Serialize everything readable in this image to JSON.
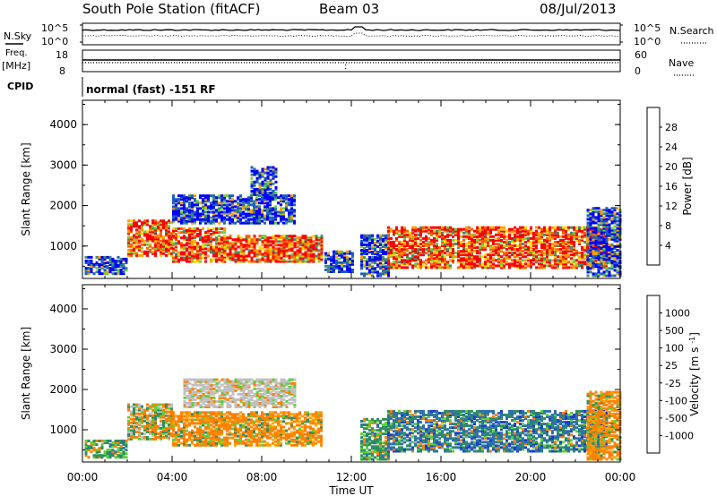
{
  "header": {
    "station": "South Pole Station (fitACF)",
    "beam": "Beam 03",
    "date": "08/Jul/2013"
  },
  "noise_panel": {
    "left_label": "N.Sky",
    "right_label": "N.Search",
    "tick_top": "10^5",
    "tick_bottom": "10^0"
  },
  "freq_panel": {
    "left_label_1": "Freq.",
    "left_label_2": "[MHz]",
    "right_label": "Nave",
    "tick_left_top": "18",
    "tick_left_bottom": "8",
    "tick_right_top": "60",
    "tick_right_bottom": "0"
  },
  "cpid": {
    "label": "CPID",
    "value": "normal (fast) -151 RF"
  },
  "colors": {
    "power": [
      "#0000ff",
      "#1f5fbf",
      "#3f8f6f",
      "#6fcf3f",
      "#ffd700",
      "#ffa000",
      "#ff6000",
      "#ff0000"
    ],
    "velocity": [
      "#1a3fcf",
      "#2f6faf",
      "#2f8f5f",
      "#5fcf3f",
      "#c0c0c0",
      "#ffa000",
      "#ff8000",
      "#ff4000",
      "#ff0000"
    ]
  },
  "chart_data": [
    {
      "type": "heatmap",
      "name": "power",
      "ylabel": "Slant Range [km]",
      "xlabel": "",
      "xlim_hours": [
        0,
        24
      ],
      "ylim": [
        200,
        4600
      ],
      "y_ticks": [
        1000,
        2000,
        3000,
        4000
      ],
      "colorbar": {
        "label": "Power [dB]",
        "ticks": [
          4,
          8,
          12,
          16,
          20,
          24,
          28
        ],
        "range": [
          0,
          32
        ]
      },
      "regions": [
        {
          "t": [
            0.1,
            2.0
          ],
          "r": [
            350,
            800
          ],
          "level": "low"
        },
        {
          "t": [
            2.0,
            4.0
          ],
          "r": [
            800,
            1700
          ],
          "level": "high"
        },
        {
          "t": [
            4.0,
            6.3
          ],
          "r": [
            650,
            1500
          ],
          "level": "high"
        },
        {
          "t": [
            6.3,
            10.7
          ],
          "r": [
            650,
            1300
          ],
          "level": "high"
        },
        {
          "t": [
            4.0,
            9.5
          ],
          "r": [
            1600,
            2300
          ],
          "level": "low"
        },
        {
          "t": [
            7.5,
            8.6
          ],
          "r": [
            2300,
            3000
          ],
          "level": "low"
        },
        {
          "t": [
            10.8,
            12.0
          ],
          "r": [
            400,
            900
          ],
          "level": "low"
        },
        {
          "t": [
            12.4,
            13.6
          ],
          "r": [
            300,
            1300
          ],
          "level": "low"
        },
        {
          "t": [
            13.6,
            23.4
          ],
          "r": [
            500,
            1500
          ],
          "level": "high"
        },
        {
          "t": [
            22.5,
            24.0
          ],
          "r": [
            300,
            2000
          ],
          "level": "low"
        }
      ]
    },
    {
      "type": "heatmap",
      "name": "velocity",
      "ylabel": "Slant Range [km]",
      "xlabel": "Time UT",
      "xlim_hours": [
        0,
        24
      ],
      "ylim": [
        200,
        4600
      ],
      "y_ticks": [
        1000,
        2000,
        3000,
        4000
      ],
      "x_tick_labels": [
        "00:00",
        "04:00",
        "08:00",
        "12:00",
        "16:00",
        "20:00",
        "00:00"
      ],
      "colorbar": {
        "label": "Velocity [m s",
        "label_sup": "-1",
        "label_end": "]",
        "ticks": [
          "1000",
          "500",
          "100",
          "25",
          "-25",
          "-100",
          "-500",
          "-1000"
        ]
      },
      "regions": [
        {
          "t": [
            0.1,
            2.0
          ],
          "r": [
            350,
            800
          ],
          "v": "pos_small"
        },
        {
          "t": [
            2.0,
            4.0
          ],
          "r": [
            800,
            1700
          ],
          "v": "mixed"
        },
        {
          "t": [
            4.0,
            10.7
          ],
          "r": [
            650,
            1500
          ],
          "v": "neg"
        },
        {
          "t": [
            4.5,
            9.5
          ],
          "r": [
            1600,
            2300
          ],
          "v": "zero"
        },
        {
          "t": [
            12.4,
            13.6
          ],
          "r": [
            300,
            1300
          ],
          "v": "pos_small"
        },
        {
          "t": [
            13.6,
            23.4
          ],
          "r": [
            500,
            1500
          ],
          "v": "pos"
        },
        {
          "t": [
            22.5,
            24.0
          ],
          "r": [
            300,
            2000
          ],
          "v": "neg"
        }
      ]
    }
  ]
}
